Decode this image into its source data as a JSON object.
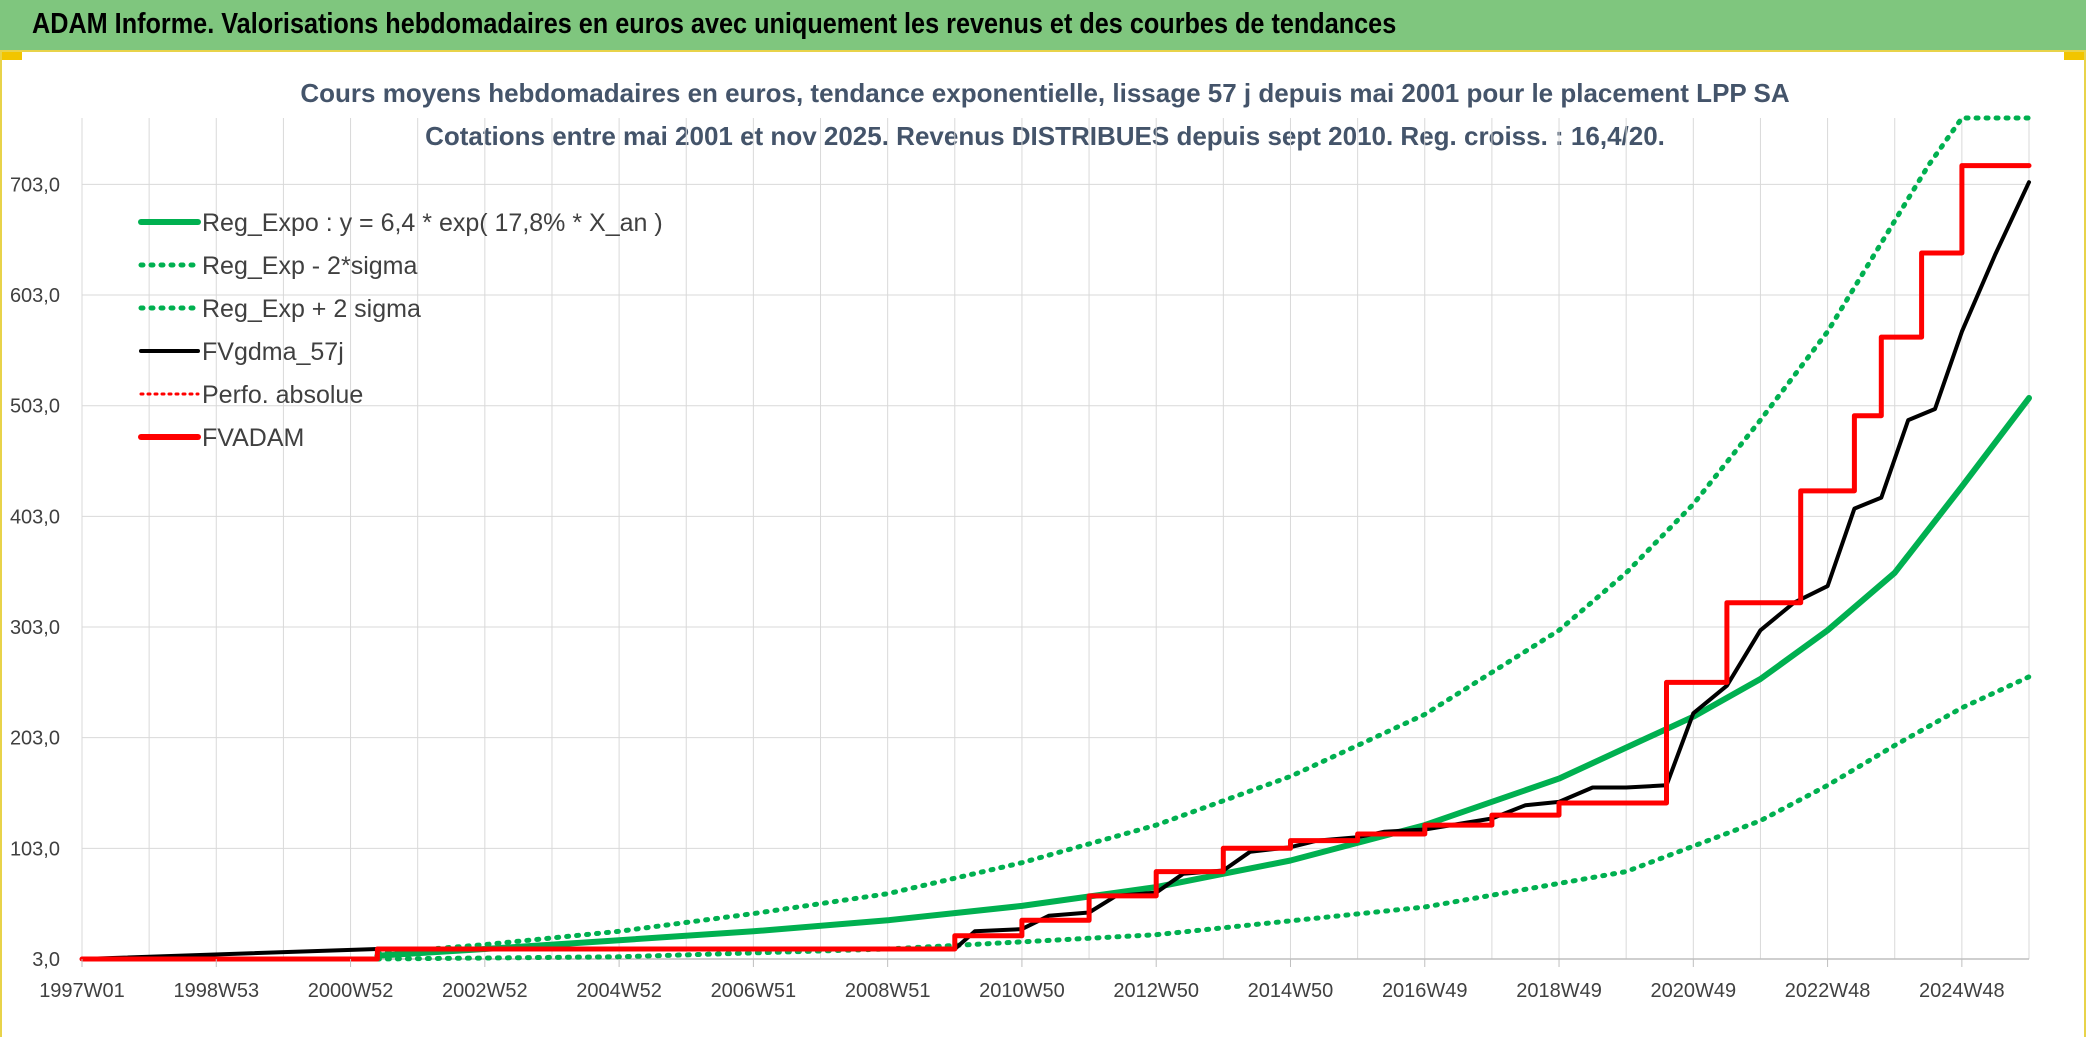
{
  "header": {
    "title": "ADAM Informe. Valorisations hebdomadaires en euros avec uniquement les revenus et des courbes de tendances"
  },
  "colors": {
    "header_bg": "#7fc67e",
    "green": "#00b050",
    "red": "#ff0000",
    "black": "#000000",
    "grid": "#d9d9d9"
  },
  "chart_data": {
    "type": "line",
    "title_line1": "Cours moyens hebdomadaires en euros, tendance exponentielle, lissage 57 j depuis mai 2001 pour le placement LPP SA",
    "title_line2": "Cotations entre mai 2001 et nov 2025. Revenus DISTRIBUES depuis sept 2010. Reg. croiss. : 16,4/20.",
    "x_ticks": [
      "1997W01",
      "1998W53",
      "2000W52",
      "2002W52",
      "2004W52",
      "2006W51",
      "2008W51",
      "2010W50",
      "2012W50",
      "2014W50",
      "2016W49",
      "2018W49",
      "2020W49",
      "2022W48",
      "2024W48"
    ],
    "x_range": [
      1997.0,
      2026.0
    ],
    "y_ticks": [
      "3,0",
      "103,0",
      "203,0",
      "303,0",
      "403,0",
      "503,0",
      "603,0",
      "703,0"
    ],
    "y_range": [
      3,
      763
    ],
    "legend": [
      {
        "label": "Reg_Expo : y = 6,4 * exp( 17,8% *  X_an )",
        "style": "solid-green"
      },
      {
        "label": "Reg_Exp - 2*sigma",
        "style": "dotted-green"
      },
      {
        "label": "Reg_Exp + 2 sigma",
        "style": "dotted-green"
      },
      {
        "label": "FVgdma_57j",
        "style": "solid-black"
      },
      {
        "label": "Perfo. absolue",
        "style": "dotted-red"
      },
      {
        "label": "FVADAM",
        "style": "solid-red"
      }
    ],
    "series": [
      {
        "name": "Reg_Expo",
        "x": [
          2001.4,
          2003,
          2005,
          2007,
          2009,
          2011,
          2013,
          2015,
          2017,
          2019,
          2021,
          2022,
          2023,
          2024,
          2025,
          2026
        ],
        "y": [
          6,
          12,
          20,
          28,
          38,
          51,
          68,
          92,
          124,
          166,
          222,
          256,
          300,
          352,
          430,
          510
        ]
      },
      {
        "name": "Reg_Exp - 2*sigma",
        "x": [
          2001.4,
          2005,
          2009,
          2013,
          2017,
          2020,
          2022,
          2023,
          2024,
          2025,
          2026
        ],
        "y": [
          3,
          5,
          12,
          25,
          50,
          82,
          128,
          160,
          196,
          230,
          258
        ]
      },
      {
        "name": "Reg_Exp + 2 sigma",
        "x": [
          2001.4,
          2003,
          2005,
          2007,
          2009,
          2011,
          2013,
          2015,
          2017,
          2019,
          2020,
          2021,
          2022,
          2023,
          2024,
          2024.5,
          2025,
          2026
        ],
        "y": [
          8,
          16,
          28,
          44,
          62,
          90,
          124,
          168,
          224,
          300,
          352,
          414,
          490,
          570,
          670,
          720,
          763,
          763
        ]
      },
      {
        "name": "FVgdma_57j",
        "x": [
          1997.0,
          2001.4,
          2010.0,
          2010.3,
          2011.0,
          2011.4,
          2012.0,
          2012.4,
          2013.0,
          2013.4,
          2014.0,
          2014.4,
          2015.0,
          2015.4,
          2016.0,
          2016.4,
          2017.0,
          2017.5,
          2018.0,
          2018.5,
          2019.0,
          2019.5,
          2020.0,
          2020.6,
          2021.0,
          2021.5,
          2022.0,
          2022.5,
          2023.0,
          2023.4,
          2023.8,
          2024.2,
          2024.6,
          2025.0,
          2025.5,
          2026.0
        ],
        "y": [
          3,
          12,
          12,
          28,
          30,
          42,
          45,
          60,
          63,
          80,
          83,
          100,
          104,
          110,
          113,
          118,
          120,
          125,
          130,
          142,
          145,
          158,
          158,
          160,
          225,
          250,
          300,
          325,
          340,
          410,
          420,
          490,
          500,
          570,
          640,
          705
        ]
      },
      {
        "name": "FVADAM",
        "x": [
          1997.0,
          2001.4,
          2001.4,
          2010.0,
          2010.0,
          2011.0,
          2011.0,
          2012.0,
          2012.0,
          2013.0,
          2013.0,
          2014.0,
          2014.0,
          2015.0,
          2015.0,
          2016.0,
          2016.0,
          2017.0,
          2017.0,
          2018.0,
          2018.0,
          2019.0,
          2019.0,
          2020.6,
          2020.6,
          2021.5,
          2021.5,
          2022.6,
          2022.6,
          2023.4,
          2023.4,
          2023.8,
          2023.8,
          2024.4,
          2024.4,
          2025.0,
          2025.0,
          2025.5,
          2025.5,
          2026.0
        ],
        "y": [
          3,
          3,
          12,
          12,
          24,
          24,
          38,
          38,
          60,
          60,
          82,
          82,
          103,
          103,
          110,
          110,
          116,
          116,
          124,
          124,
          133,
          133,
          144,
          144,
          253,
          253,
          325,
          325,
          426,
          426,
          494,
          494,
          565,
          565,
          641,
          641,
          720,
          720,
          720,
          720
        ]
      }
    ]
  }
}
